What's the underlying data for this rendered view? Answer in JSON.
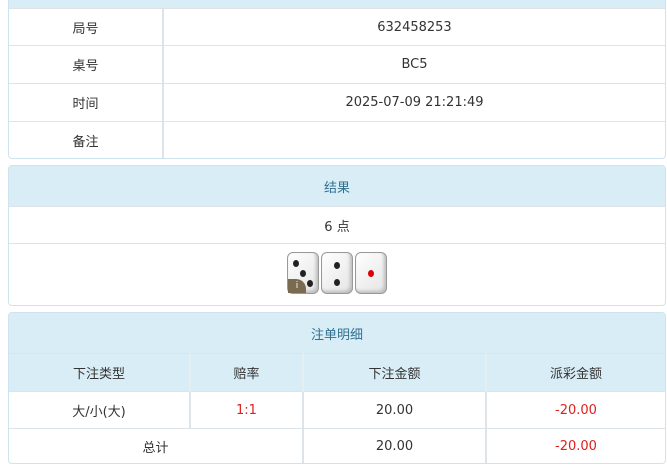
{
  "info": {
    "rows": [
      {
        "label": "局号",
        "value": "632458253"
      },
      {
        "label": "桌号",
        "value": "BC5"
      },
      {
        "label": "时间",
        "value": "2025-07-09 21:21:49"
      },
      {
        "label": "备注",
        "value": ""
      }
    ]
  },
  "result": {
    "title": "结果",
    "points": "6 点",
    "dice": [
      3,
      2,
      1
    ],
    "badge": "i"
  },
  "bets": {
    "title": "注单明细",
    "columns": [
      "下注类型",
      "赔率",
      "下注金额",
      "派彩金额"
    ],
    "rows": [
      {
        "type": "大/小(大)",
        "odds": "1:1",
        "amount": "20.00",
        "payout": "-20.00"
      }
    ],
    "total": {
      "label": "总计",
      "amount": "20.00",
      "payout": "-20.00"
    }
  },
  "colors": {
    "header_bg": "#d9edf7",
    "header_text": "#31708f",
    "negative": "#e02020"
  }
}
